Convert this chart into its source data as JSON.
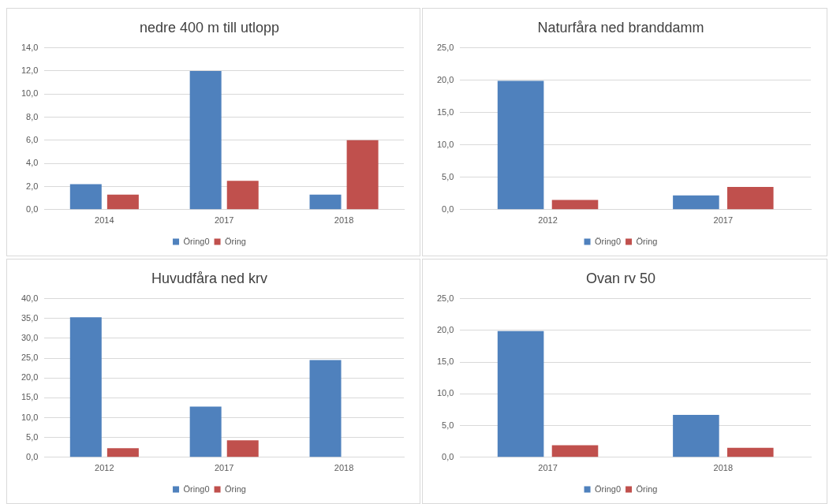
{
  "chart_data": [
    {
      "type": "bar",
      "title": "nedre 400 m till utlopp",
      "categories": [
        "2014",
        "2017",
        "2018"
      ],
      "series": [
        {
          "name": "Öring0",
          "color": "#4f81bd",
          "values": [
            2.2,
            12.0,
            1.3
          ]
        },
        {
          "name": "Öring",
          "color": "#c0504d",
          "values": [
            1.3,
            2.5,
            6.0
          ]
        }
      ],
      "ylim": [
        0,
        14
      ],
      "yticks": [
        {
          "value": 0,
          "label": "0,0"
        },
        {
          "value": 2,
          "label": "2,0"
        },
        {
          "value": 4,
          "label": "4,0"
        },
        {
          "value": 6,
          "label": "6,0"
        },
        {
          "value": 8,
          "label": "8,0"
        },
        {
          "value": 10,
          "label": "10,0"
        },
        {
          "value": 12,
          "label": "12,0"
        },
        {
          "value": 14,
          "label": "14,0"
        }
      ],
      "grid": "y",
      "legend": "bottom"
    },
    {
      "type": "bar",
      "title": "Naturfåra ned branddamm",
      "categories": [
        "2012",
        "2017"
      ],
      "series": [
        {
          "name": "Öring0",
          "color": "#4f81bd",
          "values": [
            19.9,
            2.2
          ]
        },
        {
          "name": "Öring",
          "color": "#c0504d",
          "values": [
            1.5,
            3.5
          ]
        }
      ],
      "ylim": [
        0,
        25
      ],
      "yticks": [
        {
          "value": 0,
          "label": "0,0"
        },
        {
          "value": 5,
          "label": "5,0"
        },
        {
          "value": 10,
          "label": "10,0"
        },
        {
          "value": 15,
          "label": "15,0"
        },
        {
          "value": 20,
          "label": "20,0"
        },
        {
          "value": 25,
          "label": "25,0"
        }
      ],
      "grid": "y",
      "legend": "bottom"
    },
    {
      "type": "bar",
      "title": "Huvudfåra ned krv",
      "categories": [
        "2012",
        "2017",
        "2018"
      ],
      "series": [
        {
          "name": "Öring0",
          "color": "#4f81bd",
          "values": [
            35.3,
            12.8,
            24.5
          ]
        },
        {
          "name": "Öring",
          "color": "#c0504d",
          "values": [
            2.3,
            4.3,
            null
          ]
        }
      ],
      "ylim": [
        0,
        40
      ],
      "yticks": [
        {
          "value": 0,
          "label": "0,0"
        },
        {
          "value": 5,
          "label": "5,0"
        },
        {
          "value": 10,
          "label": "10,0"
        },
        {
          "value": 15,
          "label": "15,0"
        },
        {
          "value": 20,
          "label": "20,0"
        },
        {
          "value": 25,
          "label": "25,0"
        },
        {
          "value": 30,
          "label": "30,0"
        },
        {
          "value": 35,
          "label": "35,0"
        },
        {
          "value": 40,
          "label": "40,0"
        }
      ],
      "grid": "y",
      "legend": "bottom"
    },
    {
      "type": "bar",
      "title": "Ovan rv 50",
      "categories": [
        "2017",
        "2018"
      ],
      "series": [
        {
          "name": "Öring0",
          "color": "#4f81bd",
          "values": [
            19.9,
            6.7
          ]
        },
        {
          "name": "Öring",
          "color": "#c0504d",
          "values": [
            1.9,
            1.5
          ]
        }
      ],
      "ylim": [
        0,
        25
      ],
      "yticks": [
        {
          "value": 0,
          "label": "0,0"
        },
        {
          "value": 5,
          "label": "5,0"
        },
        {
          "value": 10,
          "label": "10,0"
        },
        {
          "value": 15,
          "label": "15,0"
        },
        {
          "value": 20,
          "label": "20,0"
        },
        {
          "value": 25,
          "label": "25,0"
        }
      ],
      "grid": "y",
      "legend": "bottom"
    }
  ]
}
